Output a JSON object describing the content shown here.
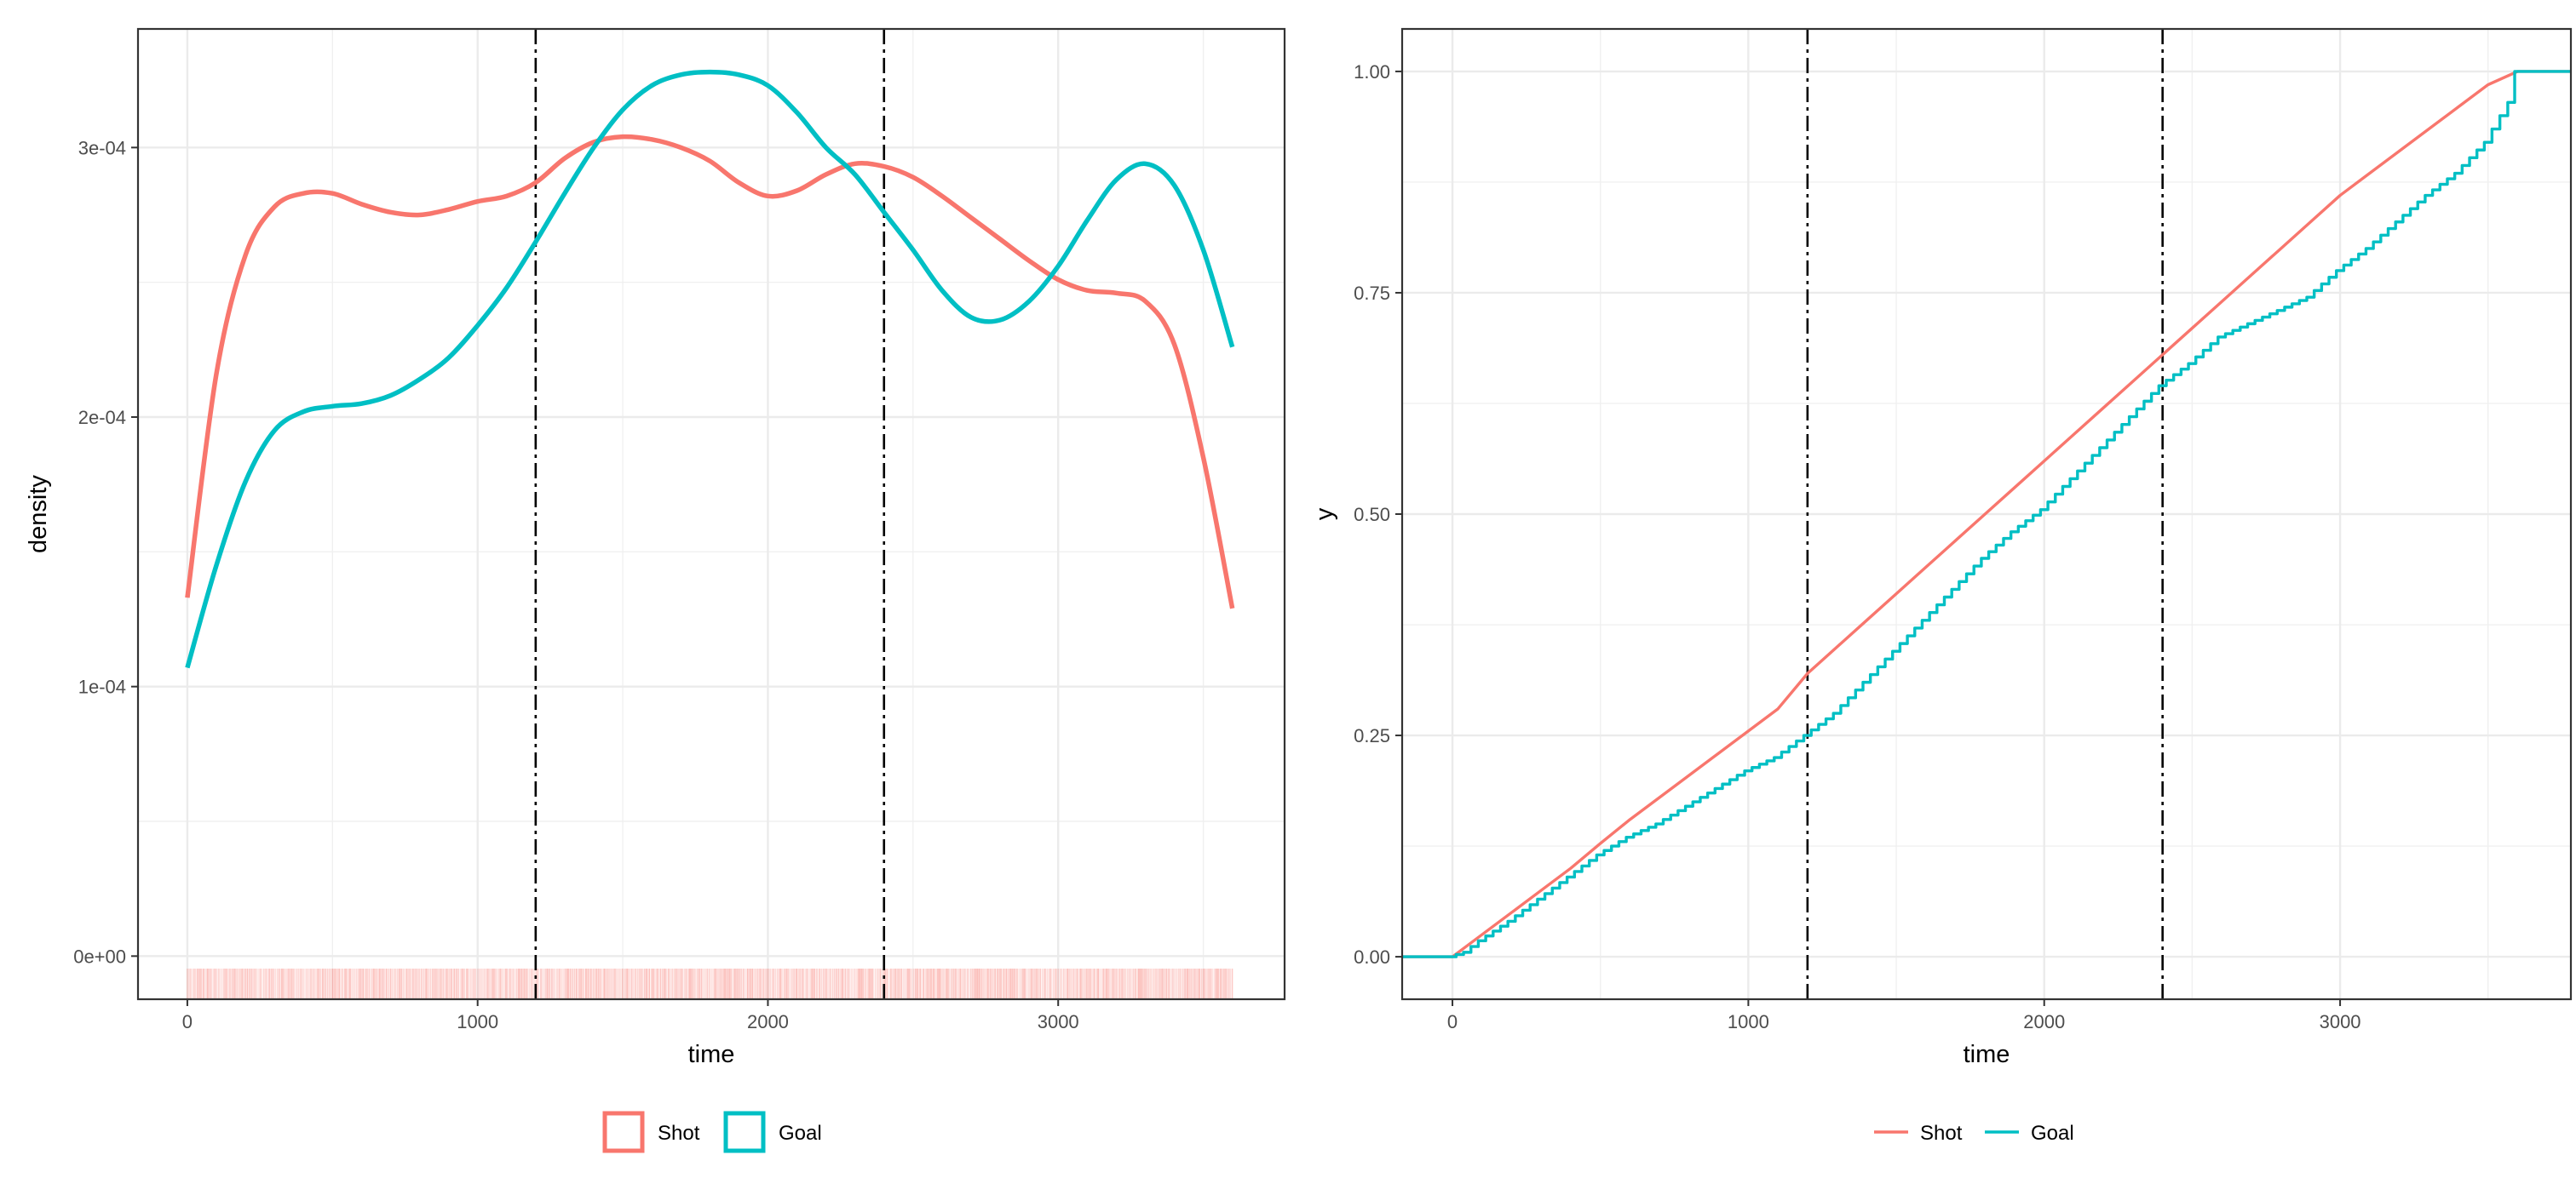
{
  "chart_data": [
    {
      "type": "line",
      "subtype": "density",
      "title": "",
      "xlabel": "time",
      "ylabel": "density",
      "xlim": [
        -170,
        3780
      ],
      "ylim": [
        -1.6e-05,
        0.000344
      ],
      "x_ticks": [
        0,
        1000,
        2000,
        3000
      ],
      "y_ticks": [
        0,
        0.0001,
        0.0002,
        0.0003
      ],
      "y_tick_labels": [
        "0e+00",
        "1e-04",
        "2e-04",
        "3e-04"
      ],
      "grid": true,
      "vlines": [
        1200,
        2400
      ],
      "vline_style": "dashdot",
      "legend": {
        "position": "bottom",
        "key": "box",
        "entries": [
          "Shot",
          "Goal"
        ]
      },
      "rug": {
        "series": "Shot",
        "x_range": [
          0,
          3600
        ]
      },
      "series": [
        {
          "name": "Shot",
          "color": "#F8766D",
          "x": [
            0,
            100,
            200,
            300,
            400,
            500,
            600,
            700,
            800,
            900,
            1000,
            1100,
            1200,
            1300,
            1400,
            1500,
            1600,
            1700,
            1800,
            1900,
            2000,
            2100,
            2200,
            2300,
            2400,
            2500,
            2600,
            2700,
            2800,
            2900,
            3000,
            3100,
            3200,
            3300,
            3400,
            3500,
            3600
          ],
          "y": [
            0.000133,
            0.000216,
            0.00026,
            0.000278,
            0.000283,
            0.000283,
            0.000279,
            0.000276,
            0.000275,
            0.000277,
            0.00028,
            0.000282,
            0.000287,
            0.000296,
            0.000302,
            0.000304,
            0.000303,
            0.0003,
            0.000295,
            0.000287,
            0.000282,
            0.000284,
            0.00029,
            0.000294,
            0.000293,
            0.000289,
            0.000282,
            0.000274,
            0.000266,
            0.000258,
            0.000251,
            0.000247,
            0.000246,
            0.000243,
            0.000227,
            0.000185,
            0.000129
          ]
        },
        {
          "name": "Goal",
          "color": "#00BFC4",
          "x": [
            0,
            100,
            200,
            300,
            400,
            500,
            600,
            700,
            800,
            900,
            1000,
            1100,
            1200,
            1300,
            1400,
            1500,
            1600,
            1700,
            1800,
            1900,
            2000,
            2100,
            2200,
            2300,
            2400,
            2500,
            2600,
            2700,
            2800,
            2900,
            3000,
            3100,
            3200,
            3300,
            3400,
            3500,
            3600
          ],
          "y": [
            0.000107,
            0.000145,
            0.000176,
            0.000195,
            0.000202,
            0.000204,
            0.000205,
            0.000208,
            0.000214,
            0.000222,
            0.000234,
            0.000248,
            0.000265,
            0.000283,
            0.0003,
            0.000314,
            0.000323,
            0.000327,
            0.000328,
            0.000327,
            0.000323,
            0.000313,
            0.0003,
            0.00029,
            0.000276,
            0.000262,
            0.000247,
            0.000237,
            0.000236,
            0.000243,
            0.000256,
            0.000273,
            0.000288,
            0.000294,
            0.000286,
            0.000262,
            0.000226
          ]
        }
      ]
    },
    {
      "type": "line",
      "subtype": "ecdf",
      "title": "",
      "xlabel": "time",
      "ylabel": "y",
      "xlim": [
        -170,
        3780
      ],
      "ylim": [
        -0.048,
        1.048
      ],
      "x_ticks": [
        0,
        1000,
        2000,
        3000
      ],
      "y_ticks": [
        0,
        0.25,
        0.5,
        0.75,
        1
      ],
      "y_tick_labels": [
        "0.00",
        "0.25",
        "0.50",
        "0.75",
        "1.00"
      ],
      "grid": true,
      "vlines": [
        1200,
        2400
      ],
      "vline_style": "dashdot",
      "legend": {
        "position": "bottom",
        "key": "line",
        "entries": [
          "Shot",
          "Goal"
        ]
      },
      "series": [
        {
          "name": "Shot",
          "color": "#F8766D",
          "x": [
            -170,
            0,
            100,
            200,
            300,
            400,
            500,
            600,
            700,
            800,
            900,
            1000,
            1100,
            1200,
            1300,
            1400,
            1500,
            1600,
            1700,
            1800,
            1900,
            2000,
            2100,
            2200,
            2300,
            2400,
            2500,
            2600,
            2700,
            2800,
            2900,
            3000,
            3100,
            3200,
            3300,
            3400,
            3500,
            3600,
            3780
          ],
          "y": [
            0,
            0,
            0.025,
            0.05,
            0.075,
            0.1,
            0.128,
            0.155,
            0.18,
            0.205,
            0.23,
            0.255,
            0.28,
            0.32,
            0.35,
            0.38,
            0.41,
            0.44,
            0.47,
            0.5,
            0.53,
            0.56,
            0.59,
            0.62,
            0.65,
            0.68,
            0.71,
            0.74,
            0.77,
            0.8,
            0.83,
            0.86,
            0.885,
            0.91,
            0.935,
            0.96,
            0.985,
            1.0,
            1.0
          ]
        },
        {
          "name": "Goal",
          "color": "#00BFC4",
          "x": [
            -170,
            0,
            50,
            100,
            200,
            300,
            400,
            500,
            600,
            700,
            800,
            900,
            1000,
            1100,
            1200,
            1300,
            1400,
            1500,
            1600,
            1700,
            1800,
            1900,
            2000,
            2100,
            2200,
            2300,
            2400,
            2500,
            2600,
            2700,
            2800,
            2900,
            3000,
            3100,
            3200,
            3300,
            3400,
            3500,
            3580,
            3600,
            3780
          ],
          "y": [
            0,
            0,
            0.005,
            0.018,
            0.04,
            0.065,
            0.09,
            0.115,
            0.135,
            0.15,
            0.17,
            0.19,
            0.21,
            0.225,
            0.25,
            0.275,
            0.31,
            0.345,
            0.38,
            0.415,
            0.45,
            0.48,
            0.505,
            0.54,
            0.575,
            0.61,
            0.645,
            0.67,
            0.7,
            0.715,
            0.73,
            0.745,
            0.775,
            0.8,
            0.83,
            0.86,
            0.885,
            0.92,
            0.965,
            1.0,
            1.0
          ]
        }
      ]
    }
  ]
}
